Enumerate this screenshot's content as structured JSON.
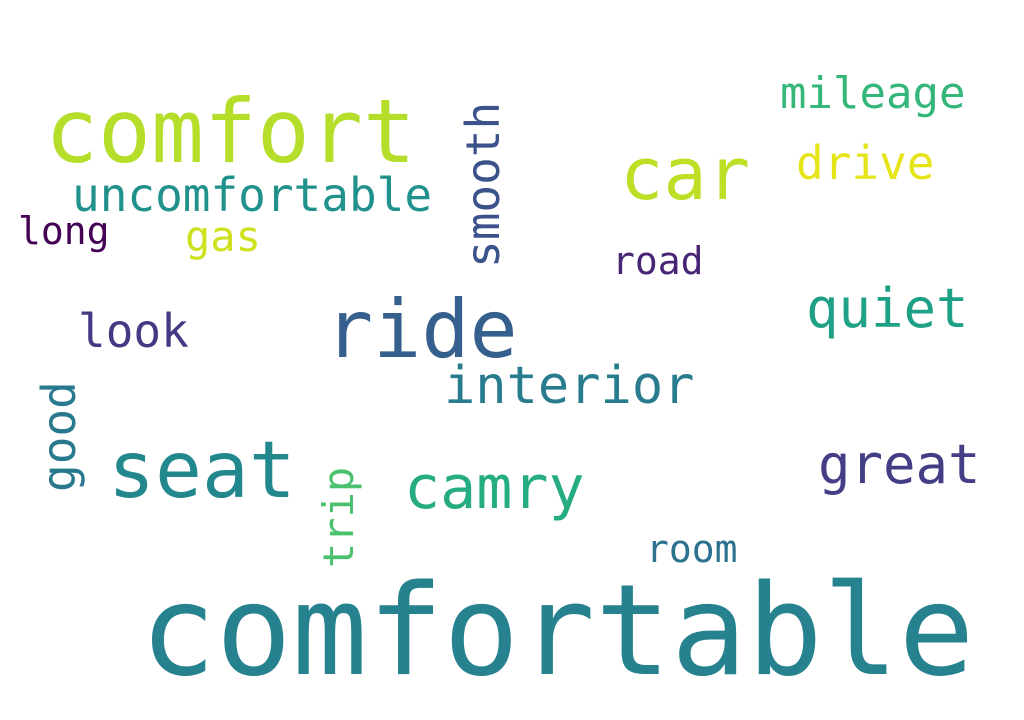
{
  "words": [
    {
      "text": "comfortable",
      "color": "#26828e"
    },
    {
      "text": "comfort",
      "color": "#b5de2b"
    },
    {
      "text": "ride",
      "color": "#355f8d"
    },
    {
      "text": "seat",
      "color": "#23888e"
    },
    {
      "text": "car",
      "color": "#bddf26"
    },
    {
      "text": "camry",
      "color": "#25ac82"
    },
    {
      "text": "interior",
      "color": "#287c8e"
    },
    {
      "text": "quiet",
      "color": "#1fa187"
    },
    {
      "text": "great",
      "color": "#433e85"
    },
    {
      "text": "uncomfortable",
      "color": "#21918c"
    },
    {
      "text": "mileage",
      "color": "#35b779"
    },
    {
      "text": "drive",
      "color": "#e5e419"
    },
    {
      "text": "look",
      "color": "#443983"
    },
    {
      "text": "gas",
      "color": "#cde11d"
    },
    {
      "text": "long",
      "color": "#440154"
    },
    {
      "text": "road",
      "color": "#482475"
    },
    {
      "text": "room",
      "color": "#2c728e"
    },
    {
      "text": "smooth",
      "color": "#3b528b"
    },
    {
      "text": "good",
      "color": "#29798e"
    },
    {
      "text": "trip",
      "color": "#4ac16d"
    }
  ]
}
